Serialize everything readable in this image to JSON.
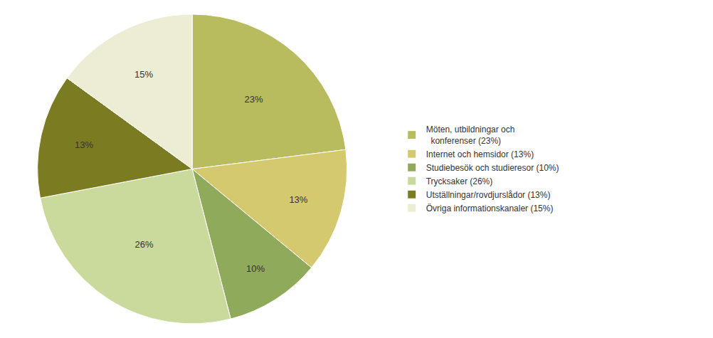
{
  "chart_data": {
    "type": "pie",
    "categories": [
      "Möten, utbildningar och\n  konferenser (23%)",
      "Internet och hemsidor (13%)",
      "Studiebesök och studieresor (10%)",
      "Trycksaker (26%)",
      "Utställningar/rovdjurslådor (13%)",
      "Övriga informationskanaler (15%)"
    ],
    "values": [
      23,
      13,
      10,
      26,
      13,
      15
    ],
    "value_labels": [
      "23%",
      "13%",
      "10%",
      "26%",
      "13%",
      "15%"
    ],
    "colors": [
      "#b8bc5e",
      "#d4c96e",
      "#8faa5a",
      "#cad99c",
      "#7b7c22",
      "#edecd4"
    ],
    "data_labels": true,
    "legend": "right"
  }
}
